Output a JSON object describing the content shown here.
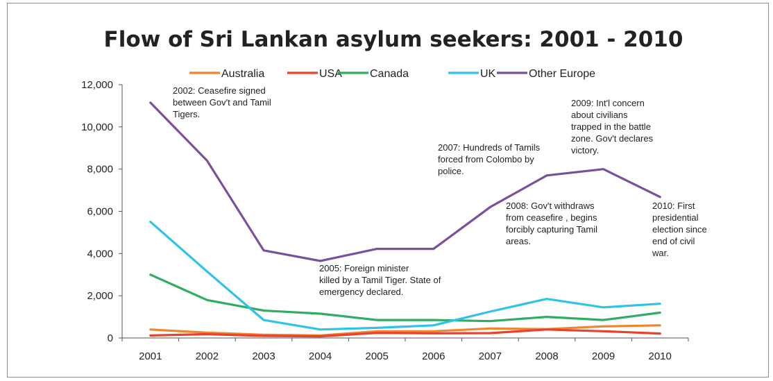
{
  "chart_data": {
    "type": "line",
    "title": "Flow of Sri Lankan asylum seekers: 2001 - 2010",
    "xlabel": "",
    "ylabel": "",
    "x": [
      "2001",
      "2002",
      "2003",
      "2004",
      "2005",
      "2006",
      "2007",
      "2008",
      "2009",
      "2010"
    ],
    "ylim": [
      0,
      12000
    ],
    "yticks": [
      "0",
      "2,000",
      "4,000",
      "6,000",
      "8,000",
      "10,000",
      "12,000"
    ],
    "legend_position": "top",
    "series": [
      {
        "name": "Australia",
        "color": "#f0852d",
        "values": [
          400,
          250,
          150,
          120,
          320,
          320,
          450,
          420,
          550,
          600
        ]
      },
      {
        "name": "USA",
        "color": "#e8412c",
        "values": [
          120,
          180,
          100,
          80,
          240,
          220,
          230,
          400,
          320,
          210
        ]
      },
      {
        "name": "Canada",
        "color": "#2fad62",
        "values": [
          3000,
          1800,
          1300,
          1150,
          850,
          850,
          800,
          1000,
          850,
          1200
        ]
      },
      {
        "name": "UK",
        "color": "#2ec3ea",
        "values": [
          5500,
          3150,
          850,
          400,
          480,
          600,
          1250,
          1850,
          1450,
          1620
        ]
      },
      {
        "name": "Other Europe",
        "color": "#7a4fa0",
        "values": [
          11150,
          8400,
          4150,
          3650,
          4220,
          4220,
          6200,
          7700,
          8000,
          6680
        ]
      }
    ],
    "annotations": [
      {
        "id": "a2002",
        "lines": [
          "2002: Ceasefire  signed",
          "between Gov't and Tamil",
          "Tigers."
        ]
      },
      {
        "id": "a2005",
        "lines": [
          "2005: Foreign minister",
          "killed by a  Tamil Tiger. State of",
          "emergency declared."
        ]
      },
      {
        "id": "a2007",
        "lines": [
          "2007: Hundreds of Tamils",
          "forced from Colombo by",
          "police."
        ]
      },
      {
        "id": "a2008",
        "lines": [
          "2008: Gov't withdraws",
          "from ceasefire , begins",
          "forcibly  capturing Tamil",
          "areas."
        ]
      },
      {
        "id": "a2009",
        "lines": [
          "2009: Int'l concern",
          "about civilians",
          "trapped in the battle",
          "zone. Gov't  declares",
          "victory."
        ]
      },
      {
        "id": "a2010",
        "lines": [
          "2010: First",
          "presidential",
          "election since",
          "end of civil",
          "war."
        ]
      }
    ]
  }
}
